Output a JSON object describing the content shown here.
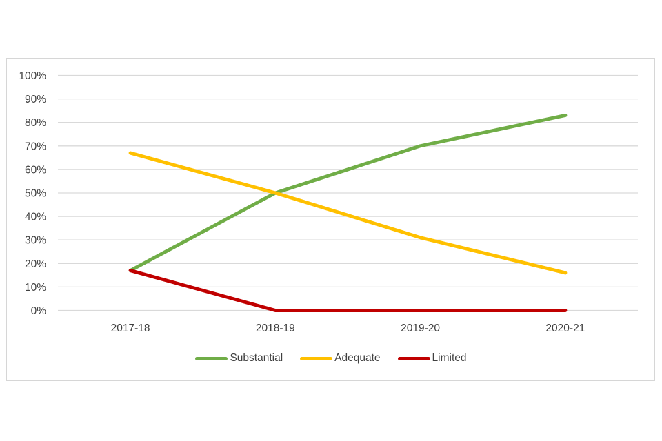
{
  "chart_data": {
    "type": "line",
    "title": "",
    "xlabel": "",
    "ylabel": "",
    "categories": [
      "2017-18",
      "2018-19",
      "2019-20",
      "2020-21"
    ],
    "series": [
      {
        "name": "Substantial",
        "color": "#70ad47",
        "values": [
          17,
          50,
          70,
          83
        ]
      },
      {
        "name": "Adequate",
        "color": "#ffc000",
        "values": [
          67,
          50,
          31,
          16
        ]
      },
      {
        "name": "Limited",
        "color": "#c00000",
        "values": [
          17,
          0,
          0,
          0
        ]
      }
    ],
    "ylim": [
      0,
      100
    ],
    "y_tick_step": 10,
    "y_tick_suffix": "%",
    "grid": "horizontal",
    "legend_position": "bottom"
  },
  "colors": {
    "background": "#ffffff",
    "panel_border": "#d6d6d6",
    "gridline": "#d9d9d9",
    "axis_text": "#404040"
  }
}
